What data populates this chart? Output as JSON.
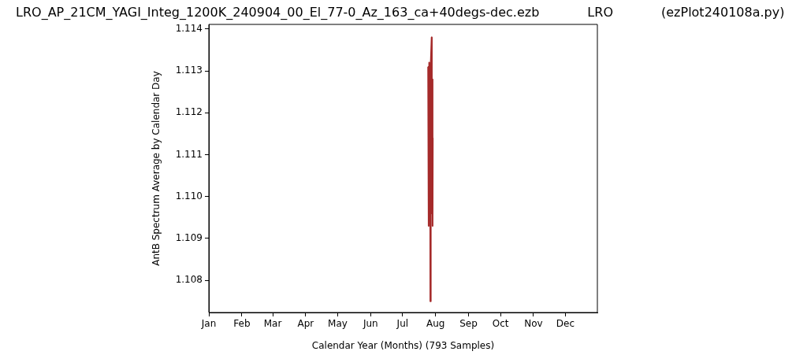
{
  "chart_data": {
    "type": "line",
    "title": "LRO_AP_21CM_YAGI_Integ_1200K_240904_00_El_77-0_Az_163_ca+40degs-dec.ezb            LRO            (ezPlot240108a.py)",
    "xlabel": "Calendar Year (Months) (793 Samples)",
    "ylabel": "AntB Spectrum Average by Calendar Day",
    "xlim": [
      "--01-01",
      "--12-31"
    ],
    "xticks": [
      {
        "value": "--01-01",
        "label": "Jan"
      },
      {
        "value": "--02-01",
        "label": "Feb"
      },
      {
        "value": "--03-01",
        "label": "Mar"
      },
      {
        "value": "--04-01",
        "label": "Apr"
      },
      {
        "value": "--05-01",
        "label": "May"
      },
      {
        "value": "--06-01",
        "label": "Jun"
      },
      {
        "value": "--07-01",
        "label": "Jul"
      },
      {
        "value": "--08-01",
        "label": "Aug"
      },
      {
        "value": "--09-01",
        "label": "Sep"
      },
      {
        "value": "--10-01",
        "label": "Oct"
      },
      {
        "value": "--11-01",
        "label": "Nov"
      },
      {
        "value": "--12-01",
        "label": "Dec"
      }
    ],
    "ylim": [
      1.10723,
      1.11411
    ],
    "yticks": [
      {
        "value": 1.108,
        "label": "1.108"
      },
      {
        "value": 1.109,
        "label": "1.109"
      },
      {
        "value": 1.11,
        "label": "1.110"
      },
      {
        "value": 1.111,
        "label": "1.111"
      },
      {
        "value": 1.112,
        "label": "1.112"
      },
      {
        "value": 1.113,
        "label": "1.113"
      },
      {
        "value": 1.114,
        "label": "1.114"
      }
    ],
    "x": [
      "--07-25T00:00",
      "--07-25T12:00",
      "--07-26T00:00",
      "--07-26T12:00",
      "--07-26T21:36",
      "--07-27T02:24",
      "--07-27T12:00",
      "--07-28T07:12",
      "--07-28T12:00",
      "--07-29T00:00",
      "--07-29T04:48",
      "--07-29T09:36"
    ],
    "series": [
      {
        "color": "#a52a2a",
        "values": [
          1.1131,
          1.1093,
          1.1132,
          1.1095,
          1.1119,
          1.1075,
          1.1132,
          1.1138,
          1.1096,
          1.1128,
          1.1093,
          1.1114
        ]
      }
    ]
  }
}
